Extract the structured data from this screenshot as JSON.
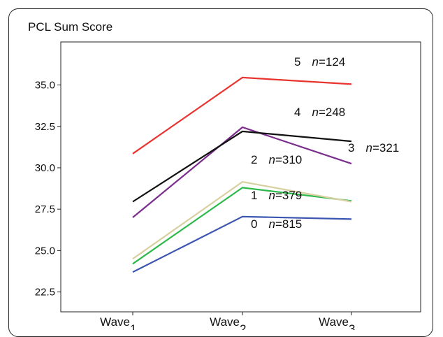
{
  "chart_data": {
    "type": "line",
    "ylabel": "PCL Sum Score",
    "x": [
      "Wave 1",
      "Wave 2",
      "Wave 3"
    ],
    "x_labels": [
      {
        "word": "Wave",
        "sub": "1"
      },
      {
        "word": "Wave",
        "sub": "2"
      },
      {
        "word": "Wave",
        "sub": "3"
      }
    ],
    "y_ticks": [
      "22.5",
      "25.0",
      "27.5",
      "30.0",
      "32.5",
      "35.0"
    ],
    "ylim": [
      21.3,
      37.6
    ],
    "grid": false,
    "series": [
      {
        "name": "0",
        "n_label": "n",
        "n_value": "=815",
        "color": "#3a55b0",
        "values": [
          23.7,
          27.05,
          26.9
        ]
      },
      {
        "name": "1",
        "n_label": "n",
        "n_value": "=379",
        "color": "#2db84a",
        "values": [
          24.2,
          28.8,
          28.0
        ]
      },
      {
        "name": "2",
        "n_label": "n",
        "n_value": "=310",
        "color": "#d8d0a0",
        "values": [
          24.5,
          29.15,
          27.95
        ]
      },
      {
        "name": "3",
        "n_label": "n",
        "n_value": "=321",
        "color": "#7b2d8e",
        "values": [
          27.0,
          32.45,
          30.25
        ]
      },
      {
        "name": "4",
        "n_label": "n",
        "n_value": "=248",
        "color": "#111111",
        "values": [
          27.95,
          32.2,
          31.6
        ]
      },
      {
        "name": "5",
        "n_label": "n",
        "n_value": "=124",
        "color": "#e8332f",
        "values": [
          30.85,
          35.45,
          35.05
        ]
      }
    ]
  }
}
